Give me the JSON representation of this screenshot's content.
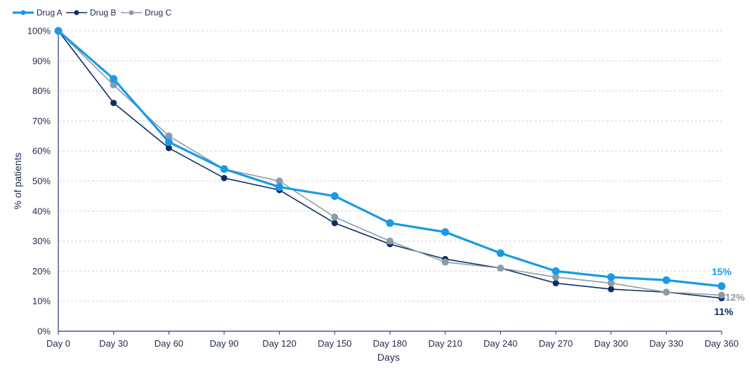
{
  "chart_data": {
    "type": "line",
    "title": "",
    "xlabel": "Days",
    "ylabel": "% of patients",
    "categories": [
      "Day 0",
      "Day 30",
      "Day 60",
      "Day 90",
      "Day 120",
      "Day 150",
      "Day 180",
      "Day 210",
      "Day 240",
      "Day 270",
      "Day 300",
      "Day 330",
      "Day 360"
    ],
    "ylim": [
      0,
      100
    ],
    "yticks": [
      "0%",
      "10%",
      "20%",
      "30%",
      "40%",
      "50%",
      "60%",
      "70%",
      "80%",
      "90%",
      "100%"
    ],
    "grid": "horizontal dashed",
    "legend": "top-left",
    "series": [
      {
        "name": "Drug A",
        "color": "#1a9ae6",
        "values": [
          100,
          84,
          63,
          54,
          48,
          45,
          36,
          33,
          26,
          20,
          18,
          17,
          15
        ],
        "end_label": "15%"
      },
      {
        "name": "Drug B",
        "color": "#0d2e63",
        "values": [
          100,
          76,
          61,
          51,
          47,
          36,
          29,
          24,
          21,
          16,
          14,
          13,
          11
        ],
        "end_label": "11%"
      },
      {
        "name": "Drug C",
        "color": "#8f9aa8",
        "values": [
          100,
          82,
          65,
          54,
          50,
          38,
          30,
          23,
          21,
          18,
          16,
          13,
          12
        ],
        "end_label": "12%"
      }
    ]
  }
}
